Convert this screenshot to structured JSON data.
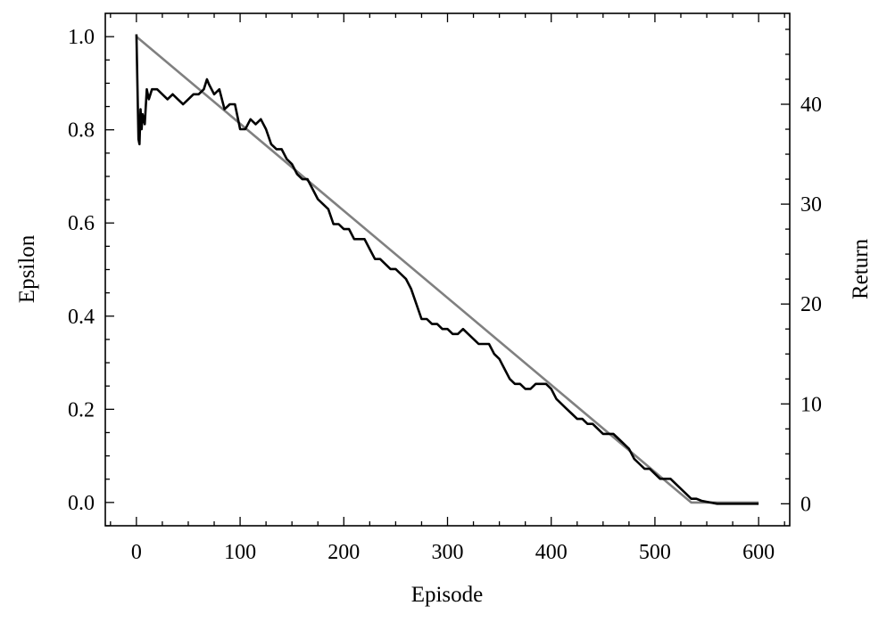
{
  "chart_data": {
    "type": "line",
    "title": "",
    "xlabel": "Episode",
    "ylabel": "Epsilon",
    "ylabel_right": "Return",
    "xlim": [
      -30,
      630
    ],
    "ylim": [
      -0.05,
      1.05
    ],
    "ylim_right": [
      -2.2,
      49.1
    ],
    "xticks": [
      0,
      100,
      200,
      300,
      400,
      500,
      600
    ],
    "yticks": [
      0.0,
      0.2,
      0.4,
      0.6,
      0.8,
      1.0
    ],
    "yticks_right": [
      0,
      10,
      20,
      30,
      40
    ],
    "ytick_labels": [
      "0.0",
      "0.2",
      "0.4",
      "0.6",
      "0.8",
      "1.0"
    ],
    "yticks_right_labels": [
      "0",
      "10",
      "20",
      "30",
      "40"
    ],
    "grid": false,
    "colors": {
      "epsilon": "#808080",
      "return": "#000000"
    },
    "series": [
      {
        "axis": "left",
        "color": "#808080",
        "x": [
          0,
          535,
          600
        ],
        "y": [
          1.0,
          0.0,
          0.0
        ]
      },
      {
        "axis": "right",
        "color": "#000000",
        "x": [
          0,
          2,
          3,
          4,
          5,
          6,
          8,
          10,
          12,
          15,
          20,
          25,
          30,
          35,
          40,
          45,
          50,
          55,
          60,
          65,
          68,
          70,
          75,
          80,
          85,
          90,
          95,
          100,
          105,
          110,
          115,
          120,
          125,
          130,
          135,
          140,
          145,
          150,
          155,
          160,
          165,
          170,
          175,
          180,
          185,
          190,
          195,
          200,
          205,
          210,
          215,
          220,
          225,
          230,
          235,
          240,
          245,
          250,
          255,
          260,
          265,
          270,
          275,
          280,
          285,
          290,
          295,
          300,
          305,
          310,
          315,
          320,
          325,
          330,
          335,
          340,
          345,
          350,
          355,
          360,
          365,
          370,
          375,
          380,
          385,
          390,
          395,
          400,
          405,
          410,
          415,
          420,
          425,
          430,
          435,
          440,
          445,
          450,
          455,
          460,
          465,
          470,
          475,
          480,
          485,
          490,
          495,
          500,
          505,
          510,
          515,
          520,
          525,
          530,
          535,
          540,
          545,
          550,
          555,
          560,
          570,
          580,
          590,
          600
        ],
        "y": [
          47.0,
          36.5,
          36.0,
          39.5,
          37.5,
          39.0,
          38.0,
          41.5,
          40.5,
          41.5,
          41.5,
          41.0,
          40.5,
          41.0,
          40.5,
          40.0,
          40.5,
          41.0,
          41.0,
          41.5,
          42.5,
          42.0,
          41.0,
          41.5,
          39.5,
          40.0,
          40.0,
          37.5,
          37.5,
          38.5,
          38.0,
          38.5,
          37.5,
          36.0,
          35.5,
          35.5,
          34.5,
          34.0,
          33.0,
          32.5,
          32.5,
          31.5,
          30.5,
          30.0,
          29.5,
          28.0,
          28.0,
          27.5,
          27.5,
          26.5,
          26.5,
          26.5,
          25.5,
          24.5,
          24.5,
          24.0,
          23.5,
          23.5,
          23.0,
          22.5,
          21.5,
          20.0,
          18.5,
          18.5,
          18.0,
          18.0,
          17.5,
          17.5,
          17.0,
          17.0,
          17.5,
          17.0,
          16.5,
          16.0,
          16.0,
          16.0,
          15.0,
          14.5,
          13.5,
          12.5,
          12.0,
          12.0,
          11.5,
          11.5,
          12.0,
          12.0,
          12.0,
          11.5,
          10.5,
          10.0,
          9.5,
          9.0,
          8.5,
          8.5,
          8.0,
          8.0,
          7.5,
          7.0,
          7.0,
          7.0,
          6.5,
          6.0,
          5.5,
          4.5,
          4.0,
          3.5,
          3.5,
          3.0,
          2.5,
          2.5,
          2.5,
          2.0,
          1.5,
          1.0,
          0.5,
          0.5,
          0.3,
          0.2,
          0.1,
          0.0,
          0.0,
          0.0,
          0.0,
          0.0
        ]
      }
    ]
  }
}
